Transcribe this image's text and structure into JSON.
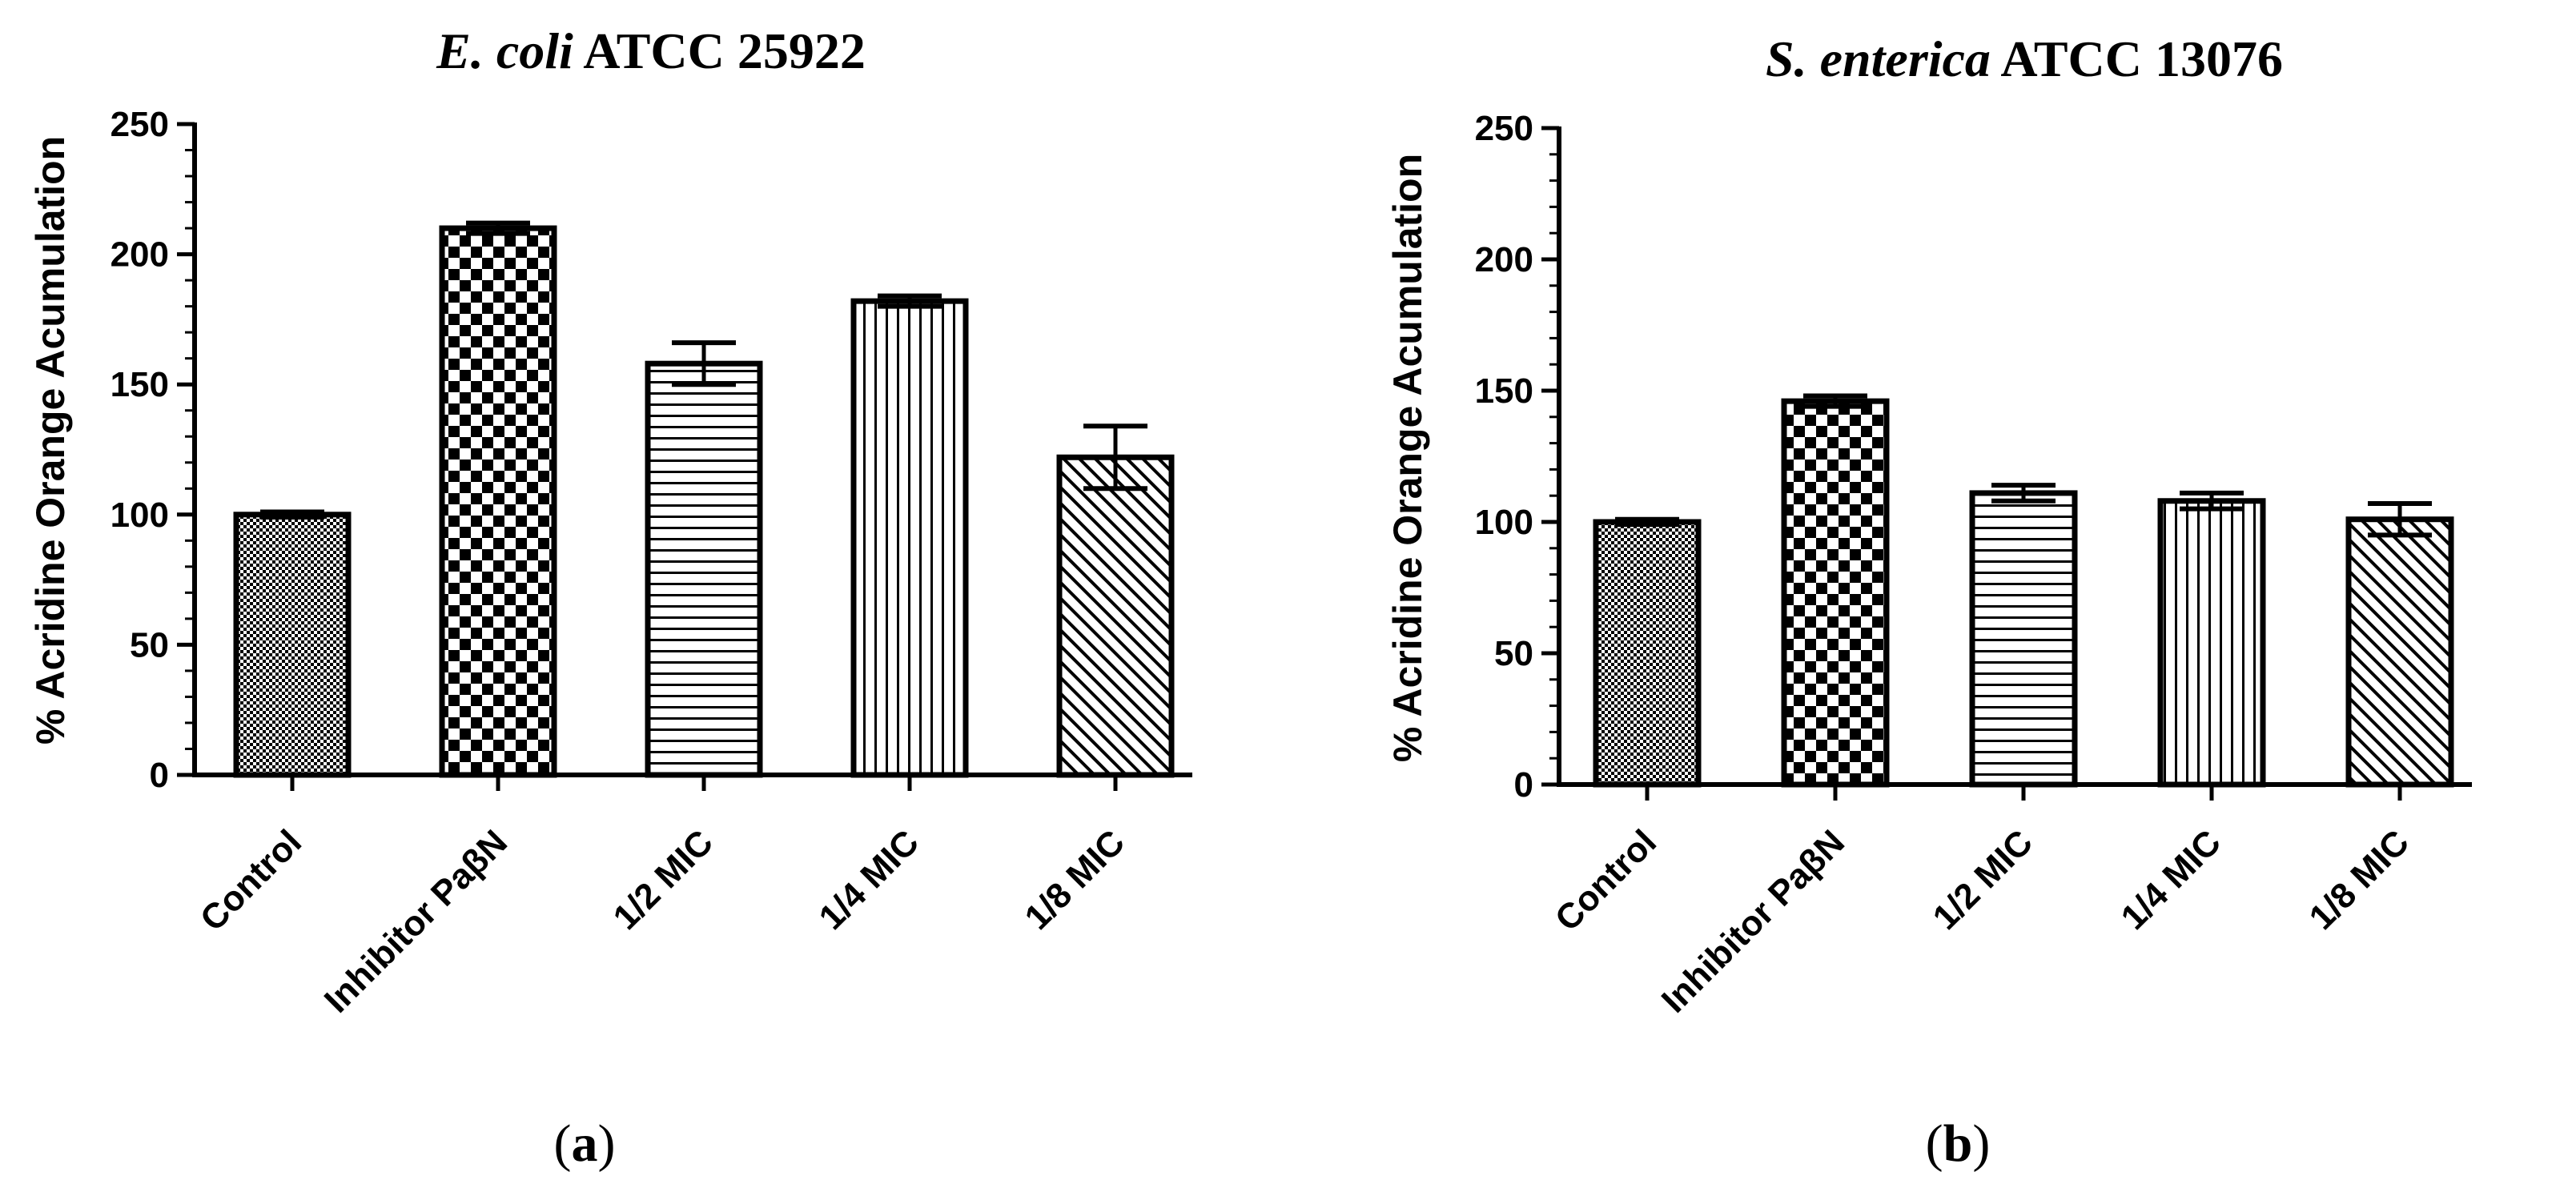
{
  "chart_data": [
    {
      "type": "bar",
      "panel": "a",
      "title_italic": "E. coli",
      "title_rest": " ATCC 25922",
      "ylabel": "% Acridine Orange Acumulation",
      "xlabel": "",
      "ylim": [
        0,
        250
      ],
      "yticks": [
        "0",
        "50",
        "100",
        "150",
        "200",
        "250"
      ],
      "categories": [
        "Control",
        "Inhibitor PaβN",
        "1/2 MIC",
        "1/4 MIC",
        "1/8 MIC"
      ],
      "values": [
        100,
        210,
        158,
        182,
        122
      ],
      "errors": [
        1,
        2,
        8,
        2,
        12
      ],
      "patterns": [
        "dots",
        "checker",
        "hlines",
        "vlines",
        "diag"
      ],
      "panel_open": "(",
      "panel_letter": "a",
      "panel_close": ")"
    },
    {
      "type": "bar",
      "panel": "b",
      "title_italic": "S. enterica",
      "title_rest": " ATCC 13076",
      "ylabel": "% Acridine Orange Acumulation",
      "xlabel": "",
      "ylim": [
        0,
        250
      ],
      "yticks": [
        "0",
        "50",
        "100",
        "150",
        "200",
        "250"
      ],
      "categories": [
        "Control",
        "Inhibitor PaβN",
        "1/2 MIC",
        "1/4 MIC",
        "1/8 MIC"
      ],
      "values": [
        100,
        146,
        111,
        108,
        101
      ],
      "errors": [
        1,
        2,
        3,
        3,
        6
      ],
      "patterns": [
        "dots",
        "checker",
        "hlines",
        "vlines",
        "diag"
      ],
      "panel_open": "(",
      "panel_letter": "b",
      "panel_close": ")"
    }
  ]
}
